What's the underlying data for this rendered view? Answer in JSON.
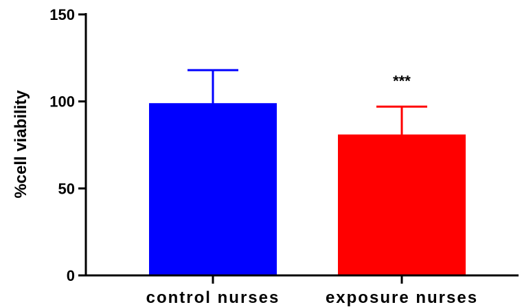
{
  "chart_data": {
    "type": "bar",
    "title": "",
    "xlabel": "",
    "ylabel": "%cell viability",
    "ylim": [
      0,
      150
    ],
    "yticks": [
      "0",
      "50",
      "100",
      "150"
    ],
    "categories": [
      "control nurses",
      "exposure nurses"
    ],
    "values": [
      99,
      81
    ],
    "error_upper": [
      118,
      97
    ],
    "colors": [
      "#0000ff",
      "#ff0000"
    ],
    "annotations": [
      "",
      "***"
    ],
    "grid": false,
    "legend": "none"
  }
}
